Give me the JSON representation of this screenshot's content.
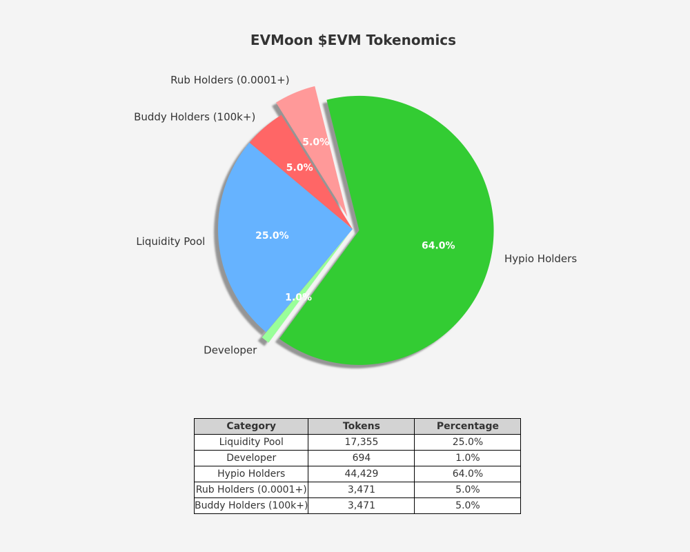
{
  "chart_data": {
    "type": "pie",
    "title": "EVMoon $EVM Tokenomics",
    "start_angle_deg": 140,
    "direction": "counterclockwise",
    "shadow": true,
    "slices": [
      {
        "label": "Liquidity Pool",
        "value": 17355,
        "percent": 25.0,
        "percent_label": "25.0%",
        "color": "#66b3ff",
        "explode": 0.0
      },
      {
        "label": "Developer",
        "value": 694,
        "percent": 1.0,
        "percent_label": "1.0%",
        "color": "#99ff99",
        "explode": 0.05
      },
      {
        "label": "Hypio Holders",
        "value": 44429,
        "percent": 64.0,
        "percent_label": "64.0%",
        "color": "#33cc33",
        "explode": 0.05
      },
      {
        "label": "Rub Holders (0.0001+)",
        "value": 3471,
        "percent": 5.0,
        "percent_label": "5.0%",
        "color": "#ff9999",
        "explode": 0.1
      },
      {
        "label": "Buddy Holders (100k+)",
        "value": 3471,
        "percent": 5.0,
        "percent_label": "5.0%",
        "color": "#ff6666",
        "explode": 0.0
      }
    ]
  },
  "table": {
    "headers": [
      "Category",
      "Tokens",
      "Percentage"
    ],
    "rows": [
      [
        "Liquidity Pool",
        "17,355",
        "25.0%"
      ],
      [
        "Developer",
        "694",
        "1.0%"
      ],
      [
        "Hypio Holders",
        "44,429",
        "64.0%"
      ],
      [
        "Rub Holders (0.0001+)",
        "3,471",
        "5.0%"
      ],
      [
        "Buddy Holders (100k+)",
        "3,471",
        "5.0%"
      ]
    ]
  }
}
